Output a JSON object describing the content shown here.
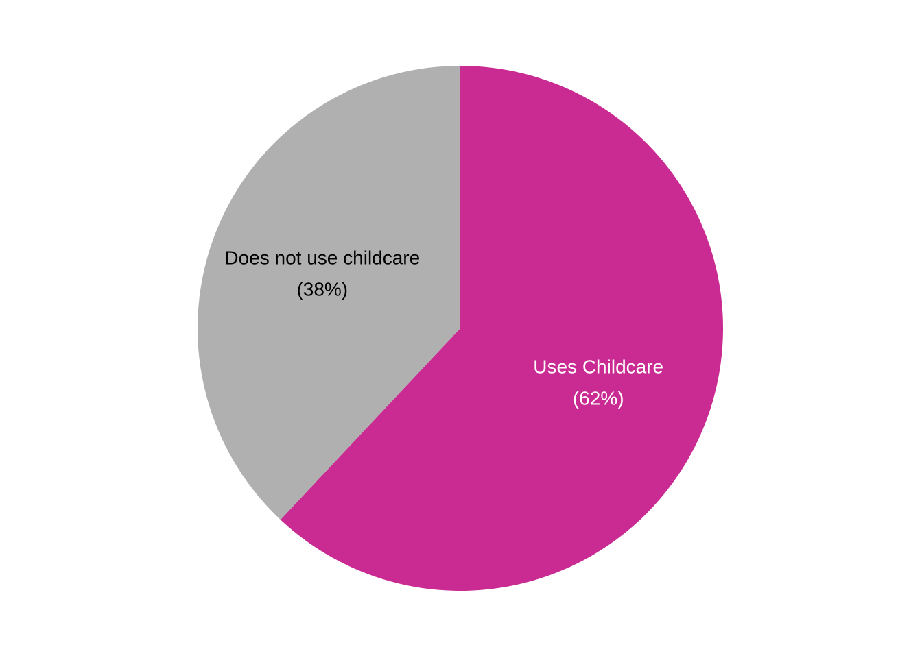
{
  "chart_data": {
    "type": "pie",
    "slices": [
      {
        "label": "Uses Childcare",
        "value": 62,
        "value_label": "(62%)",
        "color": "#CA2B92",
        "label_color": "#FFFFFF"
      },
      {
        "label": "Does not use childcare",
        "value": 38,
        "value_label": "(38%)",
        "color": "#B0B0B0",
        "label_color": "#000000"
      }
    ],
    "start_angle": "12 o'clock",
    "direction": "clockwise",
    "legend": "none"
  }
}
